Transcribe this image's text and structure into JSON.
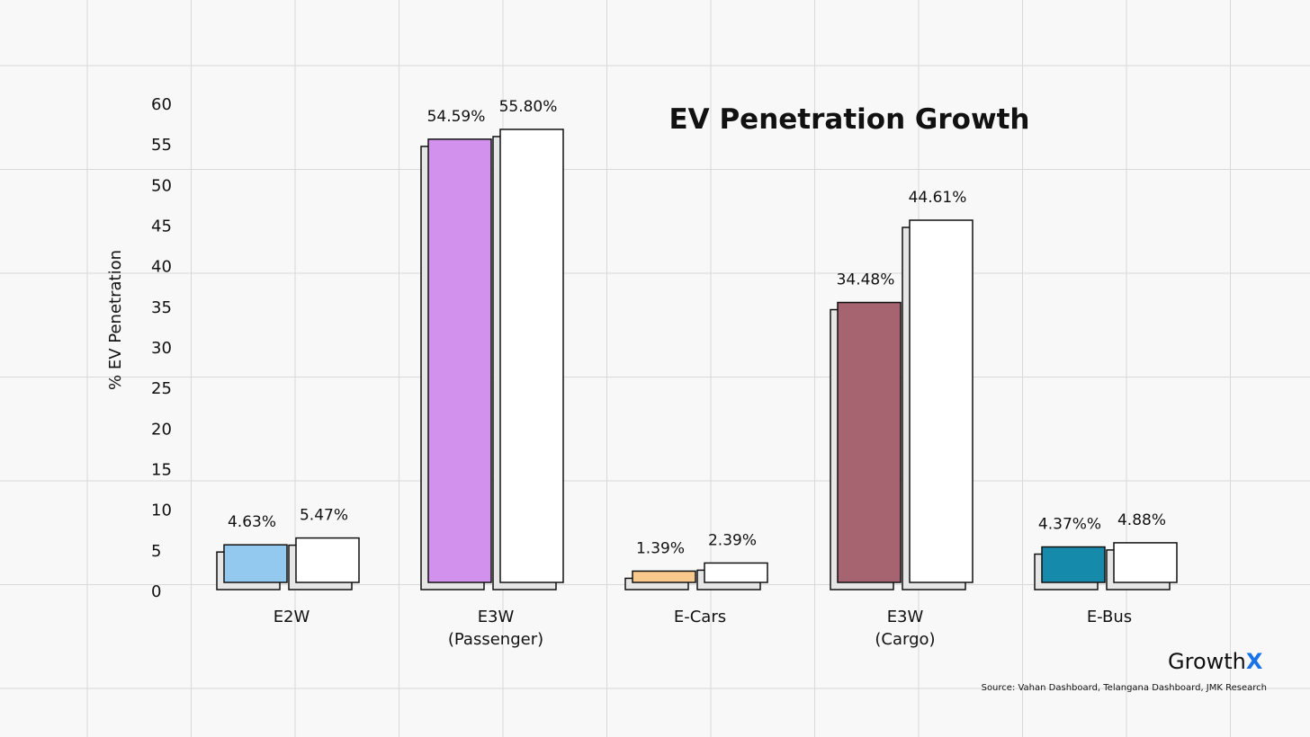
{
  "chart_data": {
    "type": "bar",
    "title": "EV Penetration Growth",
    "ylabel": "% EV Penetration",
    "ylim": [
      0,
      60
    ],
    "yticks": [
      0,
      5,
      10,
      15,
      20,
      25,
      30,
      35,
      40,
      45,
      50,
      55,
      60
    ],
    "grid": true,
    "categories": [
      {
        "lines": [
          "E2W"
        ]
      },
      {
        "lines": [
          "E3W",
          "(Passenger)"
        ]
      },
      {
        "lines": [
          "E-Cars"
        ]
      },
      {
        "lines": [
          "E3W",
          "(Cargo)"
        ]
      },
      {
        "lines": [
          "E-Bus"
        ]
      }
    ],
    "series": [
      {
        "values": [
          4.63,
          54.59,
          1.39,
          34.48,
          4.37
        ],
        "labels": [
          "4.63%",
          "54.59%",
          "1.39%",
          "34.48%",
          "4.37%%"
        ],
        "colors": [
          "#93c9ee",
          "#d191ec",
          "#f7c98d",
          "#a5646f",
          "#168aaa"
        ]
      },
      {
        "values": [
          5.47,
          55.8,
          2.39,
          44.61,
          4.88
        ],
        "labels": [
          "5.47%",
          "55.80%",
          "2.39%",
          "44.61%",
          "4.88%"
        ],
        "colors": [
          "#ffffff",
          "#ffffff",
          "#ffffff",
          "#ffffff",
          "#ffffff"
        ]
      }
    ]
  },
  "brand": {
    "name": "Growth",
    "mark": "X"
  },
  "source": "Source: Vahan Dashboard, Telangana Dashboard, JMK Research"
}
